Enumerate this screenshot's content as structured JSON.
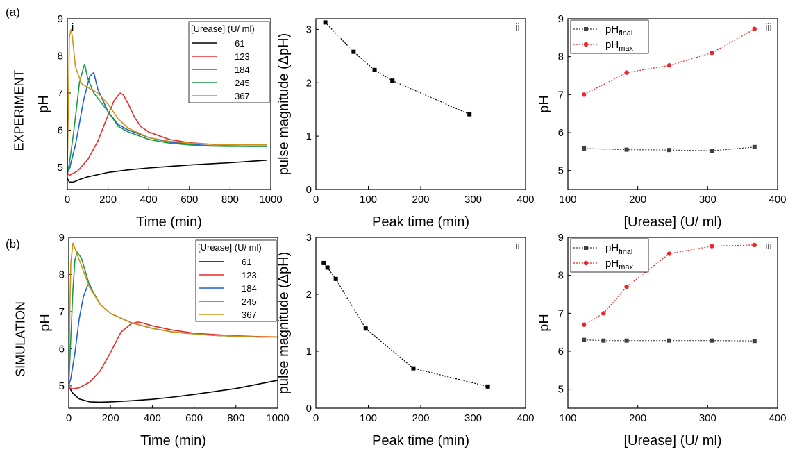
{
  "rows": [
    {
      "panel_label": "(a)",
      "side_label": "EXPERIMENT"
    },
    {
      "panel_label": "(b)",
      "side_label": "SIMULATION"
    }
  ],
  "colors": {
    "c61": "#000000",
    "c123": "#e8282b",
    "c184": "#1f5fd6",
    "c245": "#1b9b46",
    "c367": "#d19317",
    "final": "#404040",
    "max": "#e8282b"
  },
  "chart_data": [
    {
      "id": "a-i",
      "type": "line",
      "panel": "i",
      "xlabel": "Time (min)",
      "ylabel": "pH",
      "xlim": [
        0,
        1000
      ],
      "ylim": [
        4.4,
        9
      ],
      "xticks": [
        0,
        200,
        400,
        600,
        800,
        1000
      ],
      "yticks": [
        5,
        6,
        7,
        8,
        9
      ],
      "legend_title": "[Urease] (U/ ml)",
      "legend_position": "top-right",
      "series": [
        {
          "name": "61",
          "color_key": "c61",
          "x": [
            0,
            10,
            30,
            60,
            100,
            200,
            300,
            400,
            500,
            600,
            700,
            800,
            900,
            980
          ],
          "y": [
            4.7,
            4.6,
            4.6,
            4.67,
            4.74,
            4.86,
            4.93,
            4.98,
            5.02,
            5.06,
            5.09,
            5.12,
            5.16,
            5.19
          ]
        },
        {
          "name": "123",
          "color_key": "c123",
          "x": [
            0,
            10,
            50,
            100,
            150,
            200,
            230,
            260,
            275,
            300,
            330,
            360,
            400,
            500,
            600,
            700,
            800,
            900,
            980
          ],
          "y": [
            4.85,
            4.78,
            4.9,
            5.2,
            5.7,
            6.4,
            6.8,
            7.0,
            6.95,
            6.7,
            6.35,
            6.1,
            5.95,
            5.75,
            5.66,
            5.62,
            5.6,
            5.6,
            5.6
          ]
        },
        {
          "name": "184",
          "color_key": "c184",
          "x": [
            0,
            10,
            40,
            80,
            110,
            130,
            150,
            200,
            250,
            300,
            400,
            500,
            600,
            700,
            800,
            900,
            980
          ],
          "y": [
            4.85,
            4.95,
            5.6,
            6.8,
            7.45,
            7.55,
            7.1,
            6.5,
            6.15,
            6.0,
            5.8,
            5.68,
            5.62,
            5.58,
            5.57,
            5.56,
            5.56
          ]
        },
        {
          "name": "245",
          "color_key": "c245",
          "x": [
            0,
            10,
            30,
            60,
            85,
            100,
            130,
            200,
            250,
            300,
            400,
            500,
            600,
            700,
            800,
            900,
            980
          ],
          "y": [
            4.85,
            5.1,
            5.9,
            7.3,
            7.78,
            7.4,
            7.0,
            6.5,
            6.1,
            5.95,
            5.75,
            5.65,
            5.6,
            5.57,
            5.56,
            5.56,
            5.56
          ]
        },
        {
          "name": "367",
          "color_key": "c367",
          "x": [
            0,
            6,
            10,
            18,
            25,
            40,
            70,
            100,
            150,
            200,
            250,
            300,
            400,
            500,
            600,
            700,
            800,
            900,
            980
          ],
          "y": [
            5.0,
            7.0,
            8.5,
            8.72,
            8.5,
            7.7,
            7.25,
            7.15,
            7.0,
            6.7,
            6.3,
            6.05,
            5.8,
            5.7,
            5.65,
            5.62,
            5.6,
            5.6,
            5.6
          ]
        }
      ]
    },
    {
      "id": "a-ii",
      "type": "scatter",
      "panel": "ii",
      "xlabel": "Peak time (min)",
      "ylabel": "pulse magnitude (ΔpH)",
      "xlim": [
        0,
        400
      ],
      "ylim": [
        0,
        3.2
      ],
      "xticks": [
        0,
        100,
        200,
        300,
        400
      ],
      "yticks": [
        0,
        1,
        2,
        3
      ],
      "series": [
        {
          "color_key": "c61",
          "x": [
            18,
            72,
            112,
            146,
            293
          ],
          "y": [
            3.13,
            2.58,
            2.24,
            2.04,
            1.41
          ]
        }
      ]
    },
    {
      "id": "a-iii",
      "type": "line",
      "panel": "iii",
      "xlabel": "[Urease] (U/ ml)",
      "ylabel": "pH",
      "xlim": [
        100,
        400
      ],
      "ylim": [
        4.5,
        9
      ],
      "xticks": [
        100,
        200,
        300,
        400
      ],
      "yticks": [
        5,
        6,
        7,
        8,
        9
      ],
      "legend_position": "top-left",
      "series": [
        {
          "name": "pH",
          "sub": "final",
          "color_key": "final",
          "marker": "square",
          "x": [
            123,
            184,
            245,
            306,
            367
          ],
          "y": [
            5.58,
            5.55,
            5.54,
            5.52,
            5.62
          ]
        },
        {
          "name": "pH",
          "sub": "max",
          "color_key": "max",
          "marker": "circle",
          "x": [
            123,
            184,
            245,
            306,
            367
          ],
          "y": [
            7.0,
            7.58,
            7.77,
            8.1,
            8.73
          ]
        }
      ]
    },
    {
      "id": "b-i",
      "type": "line",
      "panel": "",
      "xlabel": "Time (min)",
      "ylabel": "pH",
      "xlim": [
        0,
        1000
      ],
      "ylim": [
        4.4,
        9
      ],
      "xticks": [
        0,
        200,
        400,
        600,
        800,
        1000
      ],
      "yticks": [
        5,
        6,
        7,
        8,
        9
      ],
      "legend_title": "[Urease] (U/ ml)",
      "legend_position": "top-right",
      "series": [
        {
          "name": "61",
          "color_key": "c61",
          "x": [
            0,
            20,
            50,
            100,
            150,
            200,
            300,
            400,
            500,
            600,
            700,
            800,
            900,
            1000
          ],
          "y": [
            4.98,
            4.8,
            4.65,
            4.57,
            4.56,
            4.57,
            4.6,
            4.64,
            4.7,
            4.77,
            4.85,
            4.93,
            5.04,
            5.15
          ]
        },
        {
          "name": "123",
          "color_key": "c123",
          "x": [
            0,
            20,
            50,
            100,
            150,
            200,
            250,
            300,
            330,
            350,
            400,
            500,
            600,
            700,
            800,
            900,
            1000
          ],
          "y": [
            4.95,
            4.92,
            4.95,
            5.1,
            5.4,
            5.9,
            6.45,
            6.68,
            6.72,
            6.7,
            6.62,
            6.5,
            6.42,
            6.38,
            6.35,
            6.33,
            6.32
          ]
        },
        {
          "name": "184",
          "color_key": "c184",
          "x": [
            0,
            10,
            30,
            50,
            70,
            90,
            100,
            110,
            150,
            200,
            300,
            400,
            500,
            600,
            700,
            800,
            900,
            1000
          ],
          "y": [
            5.0,
            5.2,
            5.9,
            6.8,
            7.4,
            7.7,
            7.74,
            7.6,
            7.2,
            6.95,
            6.7,
            6.55,
            6.45,
            6.4,
            6.36,
            6.34,
            6.32,
            6.32
          ]
        },
        {
          "name": "245",
          "color_key": "c245",
          "x": [
            0,
            10,
            20,
            30,
            40,
            60,
            100,
            150,
            200,
            300,
            400,
            500,
            600,
            700,
            800,
            900,
            1000
          ],
          "y": [
            5.0,
            6.3,
            7.6,
            8.4,
            8.6,
            8.45,
            7.7,
            7.2,
            6.95,
            6.7,
            6.55,
            6.45,
            6.4,
            6.36,
            6.34,
            6.32,
            6.32
          ]
        },
        {
          "name": "367",
          "color_key": "c367",
          "x": [
            0,
            5,
            10,
            20,
            30,
            50,
            100,
            150,
            200,
            300,
            400,
            500,
            600,
            700,
            800,
            900,
            1000
          ],
          "y": [
            5.1,
            7.0,
            8.3,
            8.85,
            8.7,
            8.4,
            7.65,
            7.2,
            6.95,
            6.7,
            6.55,
            6.45,
            6.4,
            6.36,
            6.34,
            6.32,
            6.32
          ]
        }
      ]
    },
    {
      "id": "b-ii",
      "type": "scatter",
      "panel": "ii",
      "xlabel": "Peak time (min)",
      "ylabel": "pulse magnitude (ΔpH)",
      "xlim": [
        0,
        400
      ],
      "ylim": [
        0,
        3
      ],
      "xticks": [
        0,
        100,
        200,
        300,
        400
      ],
      "yticks": [
        0,
        1,
        2,
        3
      ],
      "series": [
        {
          "color_key": "c61",
          "x": [
            15,
            22,
            38,
            95,
            186,
            328
          ],
          "y": [
            2.55,
            2.47,
            2.27,
            1.4,
            0.7,
            0.38
          ]
        }
      ]
    },
    {
      "id": "b-iii",
      "type": "line",
      "panel": "iii",
      "xlabel": "[Urease] (U/ ml)",
      "ylabel": "pH",
      "xlim": [
        100,
        400
      ],
      "ylim": [
        4.5,
        9
      ],
      "xticks": [
        100,
        200,
        300,
        400
      ],
      "yticks": [
        5,
        6,
        7,
        8,
        9
      ],
      "legend_position": "top-left",
      "series": [
        {
          "name": "pH",
          "sub": "final",
          "color_key": "final",
          "marker": "square",
          "x": [
            123,
            151,
            184,
            245,
            306,
            367
          ],
          "y": [
            6.3,
            6.28,
            6.28,
            6.28,
            6.28,
            6.27
          ]
        },
        {
          "name": "pH",
          "sub": "max",
          "color_key": "max",
          "marker": "circle",
          "x": [
            123,
            151,
            184,
            245,
            306,
            367
          ],
          "y": [
            6.7,
            7.0,
            7.7,
            8.57,
            8.77,
            8.8
          ]
        }
      ]
    }
  ]
}
